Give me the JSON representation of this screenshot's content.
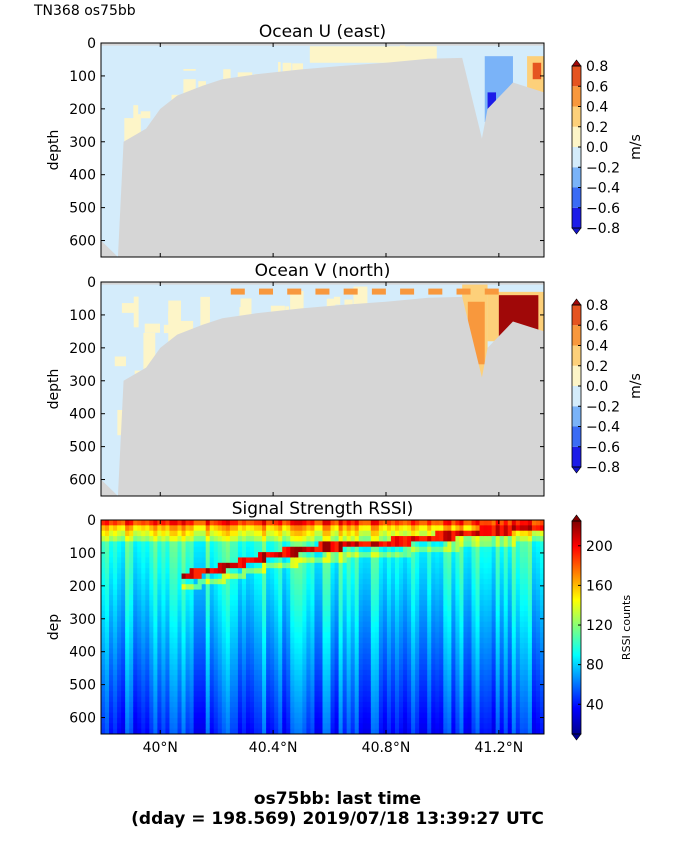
{
  "header": {
    "cruise_label": "TN368 os75bb"
  },
  "footer": {
    "line1": "os75bb: last time",
    "line2": "(dday = 198.569) 2019/07/18 13:39:27 UTC"
  },
  "chart_data": [
    {
      "type": "heatmap",
      "title": "Ocean U (east)",
      "ylabel": "depth",
      "ylim": [
        650,
        0
      ],
      "yticks": [
        0,
        100,
        200,
        300,
        400,
        500,
        600
      ],
      "xlim": [
        39.79,
        41.36
      ],
      "xticks": [
        40.0,
        40.4,
        40.8,
        41.2
      ],
      "xtick_labels": [],
      "colorbar": {
        "label": "m/s",
        "min": -0.8,
        "max": 0.8,
        "ticks": [
          0.8,
          0.6,
          0.4,
          0.2,
          0.0,
          -0.2,
          -0.4,
          -0.6,
          -0.8
        ],
        "tick_labels": [
          "0.8",
          "0.6",
          "0.4",
          "0.2",
          "0.0",
          "−0.2",
          "−0.4",
          "−0.6",
          "−0.8"
        ],
        "levels": [
          {
            "from": -0.8,
            "to": -0.6,
            "color": "#1c1ce8"
          },
          {
            "from": -0.6,
            "to": -0.4,
            "color": "#3b6cf5"
          },
          {
            "from": -0.4,
            "to": -0.2,
            "color": "#7ab3f8"
          },
          {
            "from": -0.2,
            "to": 0.0,
            "color": "#d4ecfb"
          },
          {
            "from": 0.0,
            "to": 0.2,
            "color": "#fdf5c8"
          },
          {
            "from": 0.2,
            "to": 0.4,
            "color": "#fdd07a"
          },
          {
            "from": 0.4,
            "to": 0.6,
            "color": "#f8983d"
          },
          {
            "from": 0.6,
            "to": 0.8,
            "color": "#e55420"
          }
        ],
        "extend_low": "#1414c8",
        "extend_high": "#a00808"
      },
      "bottom_depth": [
        [
          39.79,
          600
        ],
        [
          39.85,
          650
        ],
        [
          39.87,
          300
        ],
        [
          39.95,
          260
        ],
        [
          40.0,
          200
        ],
        [
          40.06,
          160
        ],
        [
          40.15,
          130
        ],
        [
          40.22,
          110
        ],
        [
          40.34,
          95
        ],
        [
          40.5,
          80
        ],
        [
          40.64,
          70
        ],
        [
          40.8,
          60
        ],
        [
          40.95,
          48
        ],
        [
          41.07,
          45
        ],
        [
          41.1,
          150
        ],
        [
          41.14,
          290
        ],
        [
          41.16,
          200
        ],
        [
          41.25,
          120
        ],
        [
          41.36,
          150
        ]
      ]
    },
    {
      "type": "heatmap",
      "title": "Ocean V (north)",
      "ylabel": "depth",
      "ylim": [
        650,
        0
      ],
      "yticks": [
        0,
        100,
        200,
        300,
        400,
        500,
        600
      ],
      "xlim": [
        39.79,
        41.36
      ],
      "xticks": [
        40.0,
        40.4,
        40.8,
        41.2
      ],
      "xtick_labels": [],
      "colorbar": {
        "label": "m/s",
        "min": -0.8,
        "max": 0.8,
        "ticks": [
          0.8,
          0.6,
          0.4,
          0.2,
          0.0,
          -0.2,
          -0.4,
          -0.6,
          -0.8
        ],
        "tick_labels": [
          "0.8",
          "0.6",
          "0.4",
          "0.2",
          "0.0",
          "−0.2",
          "−0.4",
          "−0.6",
          "−0.8"
        ],
        "levels": [
          {
            "from": -0.8,
            "to": -0.6,
            "color": "#1c1ce8"
          },
          {
            "from": -0.6,
            "to": -0.4,
            "color": "#3b6cf5"
          },
          {
            "from": -0.4,
            "to": -0.2,
            "color": "#7ab3f8"
          },
          {
            "from": -0.2,
            "to": 0.0,
            "color": "#d4ecfb"
          },
          {
            "from": 0.0,
            "to": 0.2,
            "color": "#fdf5c8"
          },
          {
            "from": 0.2,
            "to": 0.4,
            "color": "#fdd07a"
          },
          {
            "from": 0.4,
            "to": 0.6,
            "color": "#f8983d"
          },
          {
            "from": 0.6,
            "to": 0.8,
            "color": "#e55420"
          }
        ],
        "extend_low": "#1414c8",
        "extend_high": "#a00808"
      },
      "bottom_depth": [
        [
          39.79,
          600
        ],
        [
          39.85,
          650
        ],
        [
          39.87,
          300
        ],
        [
          39.95,
          260
        ],
        [
          40.0,
          200
        ],
        [
          40.06,
          160
        ],
        [
          40.15,
          130
        ],
        [
          40.22,
          110
        ],
        [
          40.34,
          95
        ],
        [
          40.5,
          80
        ],
        [
          40.64,
          70
        ],
        [
          40.8,
          60
        ],
        [
          40.95,
          48
        ],
        [
          41.07,
          45
        ],
        [
          41.1,
          150
        ],
        [
          41.14,
          290
        ],
        [
          41.16,
          200
        ],
        [
          41.25,
          120
        ],
        [
          41.36,
          150
        ]
      ]
    },
    {
      "type": "heatmap",
      "title": "Signal Strength RSSI)",
      "ylabel": "dep",
      "ylim": [
        650,
        0
      ],
      "yticks": [
        0,
        100,
        200,
        300,
        400,
        500,
        600
      ],
      "xlim": [
        39.79,
        41.36
      ],
      "xticks": [
        40.0,
        40.4,
        40.8,
        41.2
      ],
      "xtick_labels": [
        "40°N",
        "40.4°N",
        "40.8°N",
        "41.2°N"
      ],
      "colorbar": {
        "label": "RSSI counts",
        "min": 10,
        "max": 225,
        "ticks": [
          200,
          160,
          120,
          80,
          40
        ],
        "tick_labels": [
          "200",
          "160",
          "120",
          "80",
          "40"
        ],
        "colormap": "jet"
      },
      "high_return_layer_depth": [
        [
          40.08,
          170
        ],
        [
          40.2,
          150
        ],
        [
          40.4,
          105
        ],
        [
          40.6,
          80
        ],
        [
          40.8,
          70
        ],
        [
          41.0,
          50
        ],
        [
          41.2,
          30
        ],
        [
          41.36,
          25
        ]
      ]
    }
  ]
}
